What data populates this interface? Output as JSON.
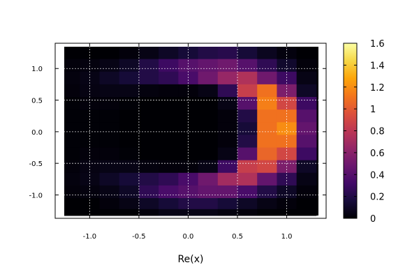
{
  "chart_data": {
    "type": "heatmap",
    "title": "",
    "xlabel": "Re(x)",
    "ylabel": "",
    "x_range": [
      -1.35,
      1.4
    ],
    "y_range": [
      -1.37,
      1.4
    ],
    "x_ticks": [
      {
        "value": -1.0,
        "label": "-1.0"
      },
      {
        "value": -0.5,
        "label": "-0.5"
      },
      {
        "value": 0.0,
        "label": "0.0"
      },
      {
        "value": 0.5,
        "label": "0.5"
      },
      {
        "value": 1.0,
        "label": "1.0"
      }
    ],
    "y_ticks": [
      {
        "value": 1.0,
        "label": "1.0"
      },
      {
        "value": 0.5,
        "label": "0.5"
      },
      {
        "value": 0.0,
        "label": "0.0"
      },
      {
        "value": -0.5,
        "label": "-0.5"
      },
      {
        "value": -1.0,
        "label": "-1.0"
      }
    ],
    "grid": true,
    "grid_style": "dashed",
    "colormap": "inferno",
    "colorbar": {
      "min": 0,
      "max": 1.6,
      "ticks": [
        {
          "value": 0,
          "label": "0"
        },
        {
          "value": 0.2,
          "label": "0.2"
        },
        {
          "value": 0.4,
          "label": "0.4"
        },
        {
          "value": 0.6,
          "label": "0.6"
        },
        {
          "value": 0.8,
          "label": "0.8"
        },
        {
          "value": 1,
          "label": "1"
        },
        {
          "value": 1.2,
          "label": "1.2"
        },
        {
          "value": 1.4,
          "label": "1.4"
        },
        {
          "value": 1.6,
          "label": "1.6"
        }
      ]
    },
    "x_centers": [
      -1.2,
      -1.0,
      -0.8,
      -0.6,
      -0.4,
      -0.2,
      0.0,
      0.2,
      0.4,
      0.6,
      0.8,
      1.0,
      1.2
    ],
    "y_centers": [
      1.25,
      1.05,
      0.85,
      0.65,
      0.45,
      0.25,
      0.05,
      -0.15,
      -0.35,
      -0.55,
      -0.75,
      -0.95,
      -1.15,
      -1.3
    ],
    "values": [
      [
        0.0,
        0.0,
        0.0,
        0.02,
        0.05,
        0.1,
        0.15,
        0.2,
        0.22,
        0.15,
        0.08,
        0.03,
        0.0
      ],
      [
        0.02,
        0.03,
        0.05,
        0.1,
        0.2,
        0.3,
        0.4,
        0.45,
        0.5,
        0.4,
        0.25,
        0.12,
        0.02
      ],
      [
        0.03,
        0.05,
        0.1,
        0.15,
        0.2,
        0.25,
        0.35,
        0.5,
        0.65,
        0.75,
        0.5,
        0.3,
        0.05
      ],
      [
        0.02,
        0.04,
        0.05,
        0.05,
        0.03,
        0.02,
        0.02,
        0.05,
        0.25,
        0.85,
        1.1,
        0.55,
        0.1
      ],
      [
        0.01,
        0.02,
        0.02,
        0.01,
        0.0,
        0.0,
        0.0,
        0.0,
        0.05,
        0.4,
        1.15,
        0.9,
        0.3
      ],
      [
        0.01,
        0.01,
        0.01,
        0.0,
        0.0,
        0.0,
        0.0,
        0.0,
        0.02,
        0.2,
        1.1,
        1.1,
        0.4
      ],
      [
        0.01,
        0.01,
        0.01,
        0.0,
        0.0,
        0.0,
        0.0,
        0.0,
        0.02,
        0.15,
        1.1,
        1.2,
        0.45
      ],
      [
        0.01,
        0.01,
        0.01,
        0.0,
        0.0,
        0.0,
        0.0,
        0.0,
        0.02,
        0.2,
        1.1,
        1.1,
        0.4
      ],
      [
        0.01,
        0.02,
        0.02,
        0.01,
        0.0,
        0.0,
        0.0,
        0.0,
        0.05,
        0.4,
        1.05,
        0.9,
        0.3
      ],
      [
        0.02,
        0.04,
        0.05,
        0.05,
        0.03,
        0.02,
        0.02,
        0.05,
        0.3,
        0.85,
        0.9,
        0.55,
        0.1
      ],
      [
        0.03,
        0.05,
        0.1,
        0.15,
        0.2,
        0.25,
        0.35,
        0.5,
        0.7,
        0.75,
        0.45,
        0.25,
        0.05
      ],
      [
        0.02,
        0.03,
        0.05,
        0.1,
        0.25,
        0.35,
        0.4,
        0.45,
        0.45,
        0.35,
        0.2,
        0.1,
        0.02
      ],
      [
        0.0,
        0.0,
        0.02,
        0.05,
        0.1,
        0.15,
        0.2,
        0.2,
        0.15,
        0.1,
        0.05,
        0.02,
        0.0
      ],
      [
        0.0,
        0.0,
        0.0,
        0.0,
        0.02,
        0.05,
        0.05,
        0.05,
        0.03,
        0.02,
        0.0,
        0.0,
        0.0
      ]
    ]
  }
}
